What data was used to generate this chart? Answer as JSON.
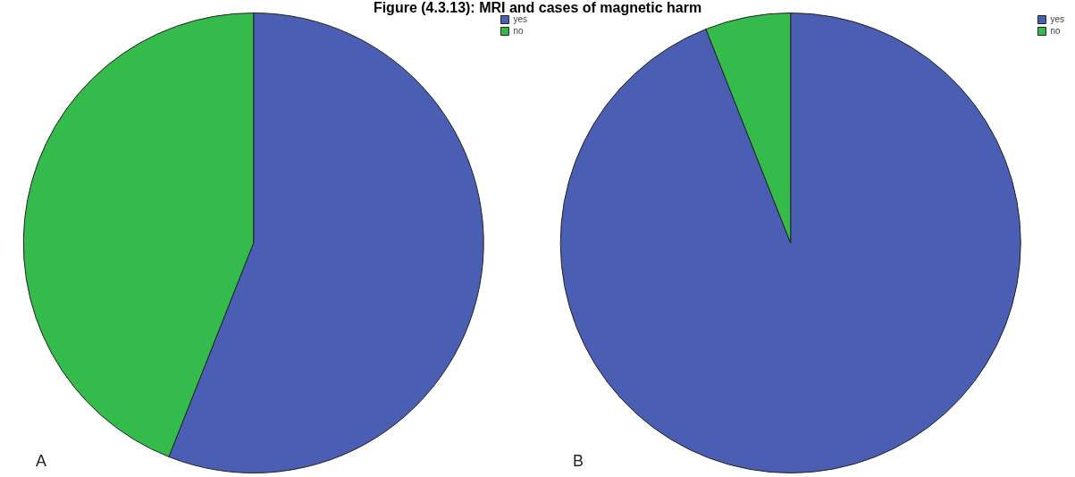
{
  "chart_data": [
    {
      "type": "pie",
      "title": "Figure (4.3.13): MRI and cases of magnetic harm",
      "categories": [
        "yes",
        "no"
      ],
      "values": [
        56,
        44
      ],
      "colors": [
        "#4a5fb4",
        "#34bb4c"
      ],
      "legend": "top right",
      "annotations": [
        "A"
      ]
    },
    {
      "type": "pie",
      "categories": [
        "yes",
        "no"
      ],
      "values": [
        94,
        6
      ],
      "colors": [
        "#4a5fb4",
        "#34bb4c"
      ],
      "legend": "top right",
      "annotations": [
        "B"
      ]
    }
  ]
}
